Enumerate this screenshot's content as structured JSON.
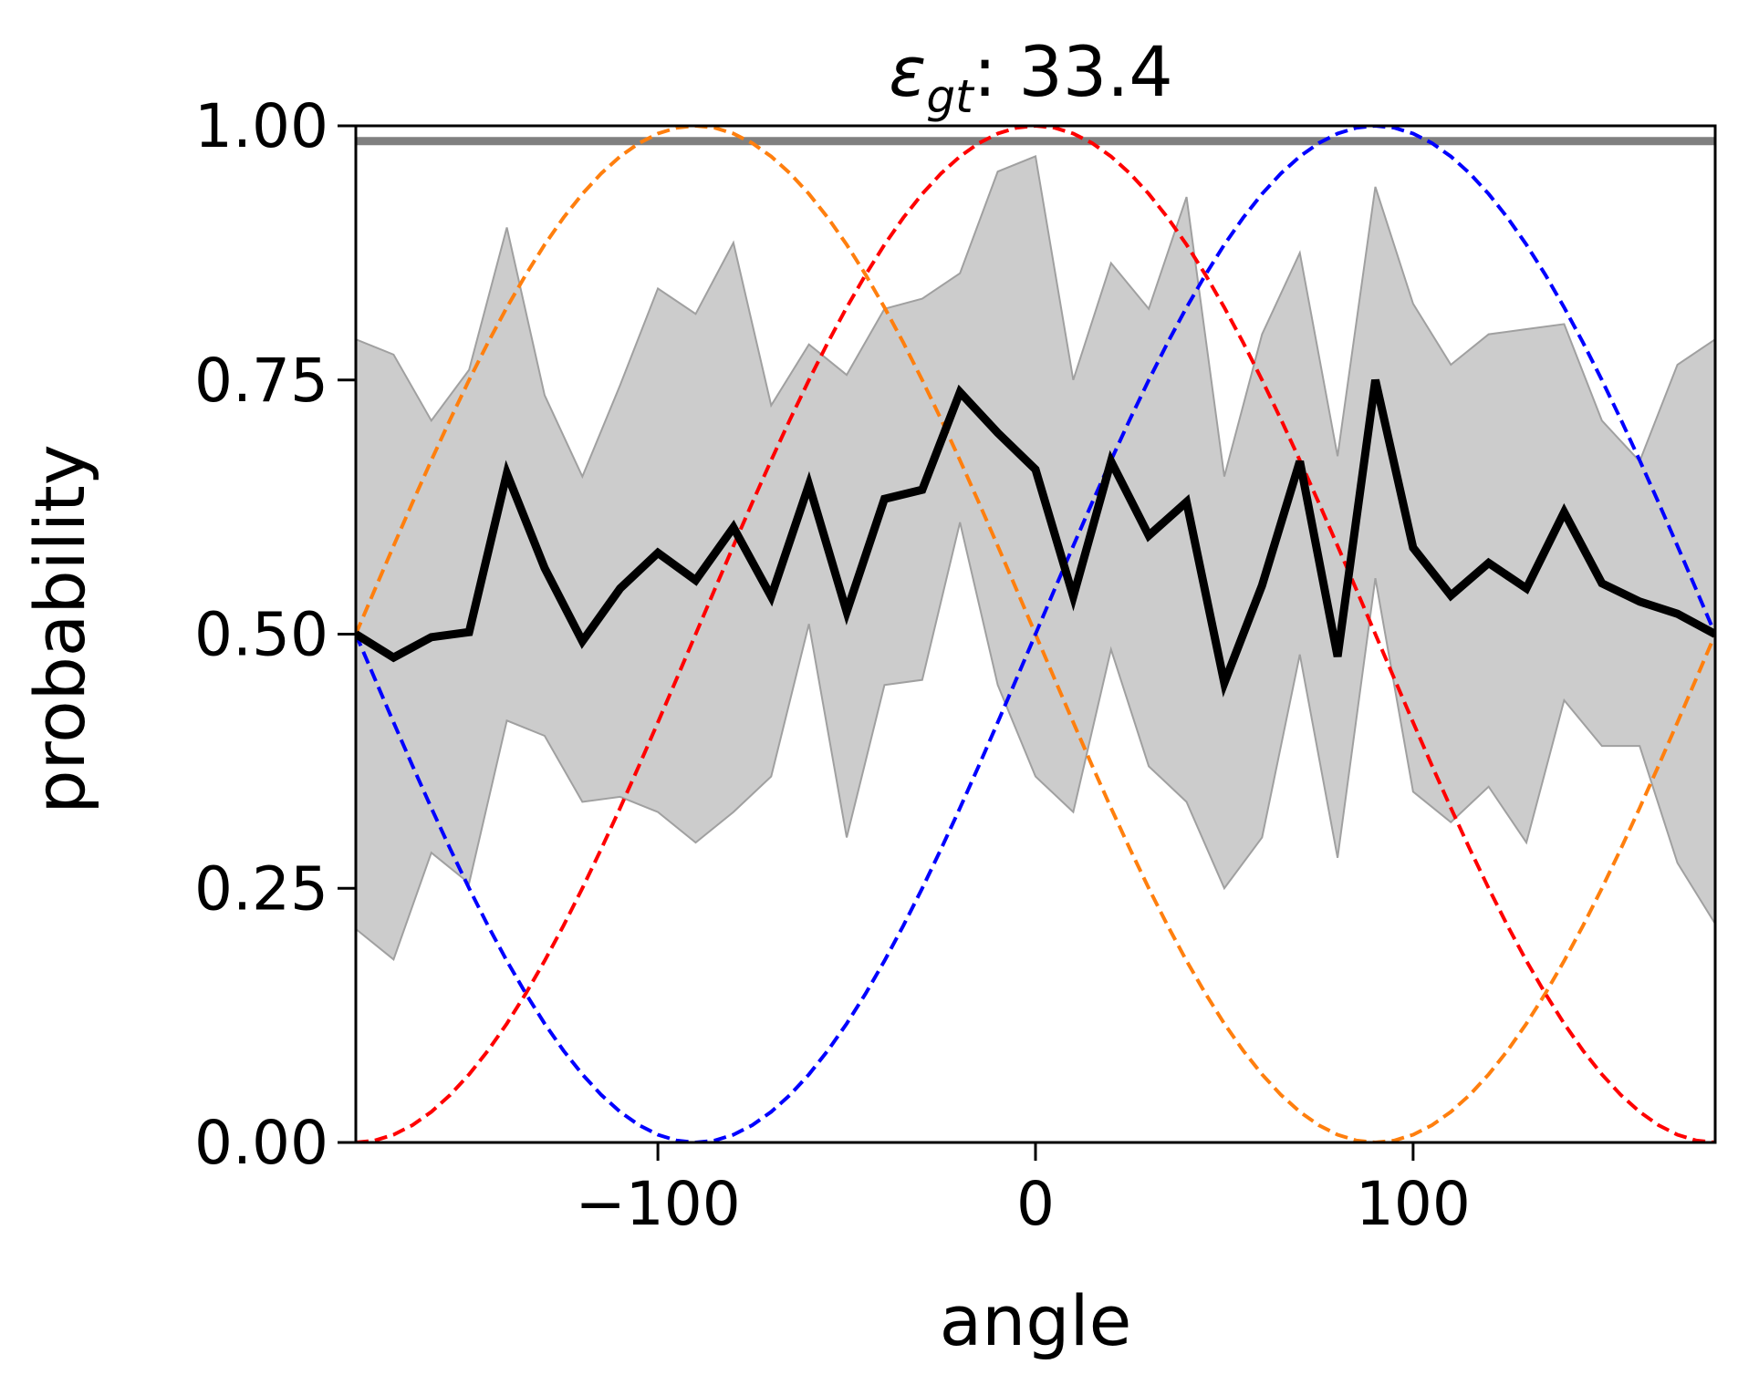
{
  "chart_data": {
    "type": "line",
    "title": {
      "symbol": "ε",
      "subscript": "gt",
      "suffix": ": 33.4"
    },
    "xlabel": "angle",
    "ylabel": "probability",
    "xlim": [
      -180,
      180
    ],
    "ylim": [
      0,
      1
    ],
    "xticks": [
      -100,
      0,
      100
    ],
    "xtick_labels": [
      "−100",
      "0",
      "100"
    ],
    "yticks": [
      0,
      0.25,
      0.5,
      0.75,
      1.0
    ],
    "ytick_labels": [
      "0.00",
      "0.25",
      "0.50",
      "0.75",
      "1.00"
    ],
    "grid": false,
    "legend": "none",
    "reference_line": {
      "y": 0.985,
      "color": "#808080"
    },
    "band": {
      "color": "#cccccc",
      "edge_color": "#a0a0a0",
      "x": [
        -180,
        -170,
        -160,
        -150,
        -140,
        -130,
        -120,
        -110,
        -100,
        -90,
        -80,
        -70,
        -60,
        -50,
        -40,
        -30,
        -20,
        -10,
        0,
        10,
        20,
        30,
        40,
        50,
        60,
        70,
        80,
        90,
        100,
        110,
        120,
        130,
        140,
        150,
        160,
        170,
        180
      ],
      "upper": [
        0.79,
        0.775,
        0.71,
        0.76,
        0.9,
        0.735,
        0.655,
        0.745,
        0.84,
        0.815,
        0.885,
        0.725,
        0.785,
        0.755,
        0.82,
        0.83,
        0.855,
        0.955,
        0.97,
        0.75,
        0.865,
        0.82,
        0.93,
        0.655,
        0.795,
        0.875,
        0.675,
        0.94,
        0.825,
        0.765,
        0.795,
        0.8,
        0.805,
        0.71,
        0.67,
        0.765,
        0.79
      ],
      "lower": [
        0.21,
        0.18,
        0.285,
        0.255,
        0.415,
        0.4,
        0.335,
        0.34,
        0.325,
        0.295,
        0.325,
        0.36,
        0.51,
        0.3,
        0.45,
        0.455,
        0.61,
        0.45,
        0.36,
        0.325,
        0.485,
        0.37,
        0.335,
        0.25,
        0.3,
        0.48,
        0.28,
        0.555,
        0.345,
        0.315,
        0.35,
        0.295,
        0.435,
        0.39,
        0.39,
        0.275,
        0.215
      ]
    },
    "series": [
      {
        "color": "#000000",
        "dash": "solid",
        "x": [
          -180,
          -170,
          -160,
          -150,
          -140,
          -130,
          -120,
          -110,
          -100,
          -90,
          -80,
          -70,
          -60,
          -50,
          -40,
          -30,
          -20,
          -10,
          0,
          10,
          20,
          30,
          40,
          50,
          60,
          70,
          80,
          90,
          100,
          110,
          120,
          130,
          140,
          150,
          160,
          170,
          180
        ],
        "values": [
          0.5,
          0.477,
          0.497,
          0.502,
          0.658,
          0.565,
          0.493,
          0.545,
          0.58,
          0.553,
          0.605,
          0.537,
          0.647,
          0.522,
          0.633,
          0.642,
          0.738,
          0.698,
          0.662,
          0.537,
          0.67,
          0.597,
          0.63,
          0.452,
          0.548,
          0.67,
          0.478,
          0.75,
          0.585,
          0.538,
          0.57,
          0.545,
          0.62,
          0.55,
          0.532,
          0.52,
          0.5
        ]
      },
      {
        "color": "#ff7f0e",
        "dash": "dashed",
        "function": "(1 + sin(-x)) / 2",
        "x_step": 5
      },
      {
        "color": "#ff0000",
        "dash": "dashed",
        "function": "(1 + cos(x)) / 2",
        "x_step": 5
      },
      {
        "color": "#0000ff",
        "dash": "dashed",
        "function": "(1 + sin(x)) / 2",
        "x_step": 5
      }
    ]
  }
}
